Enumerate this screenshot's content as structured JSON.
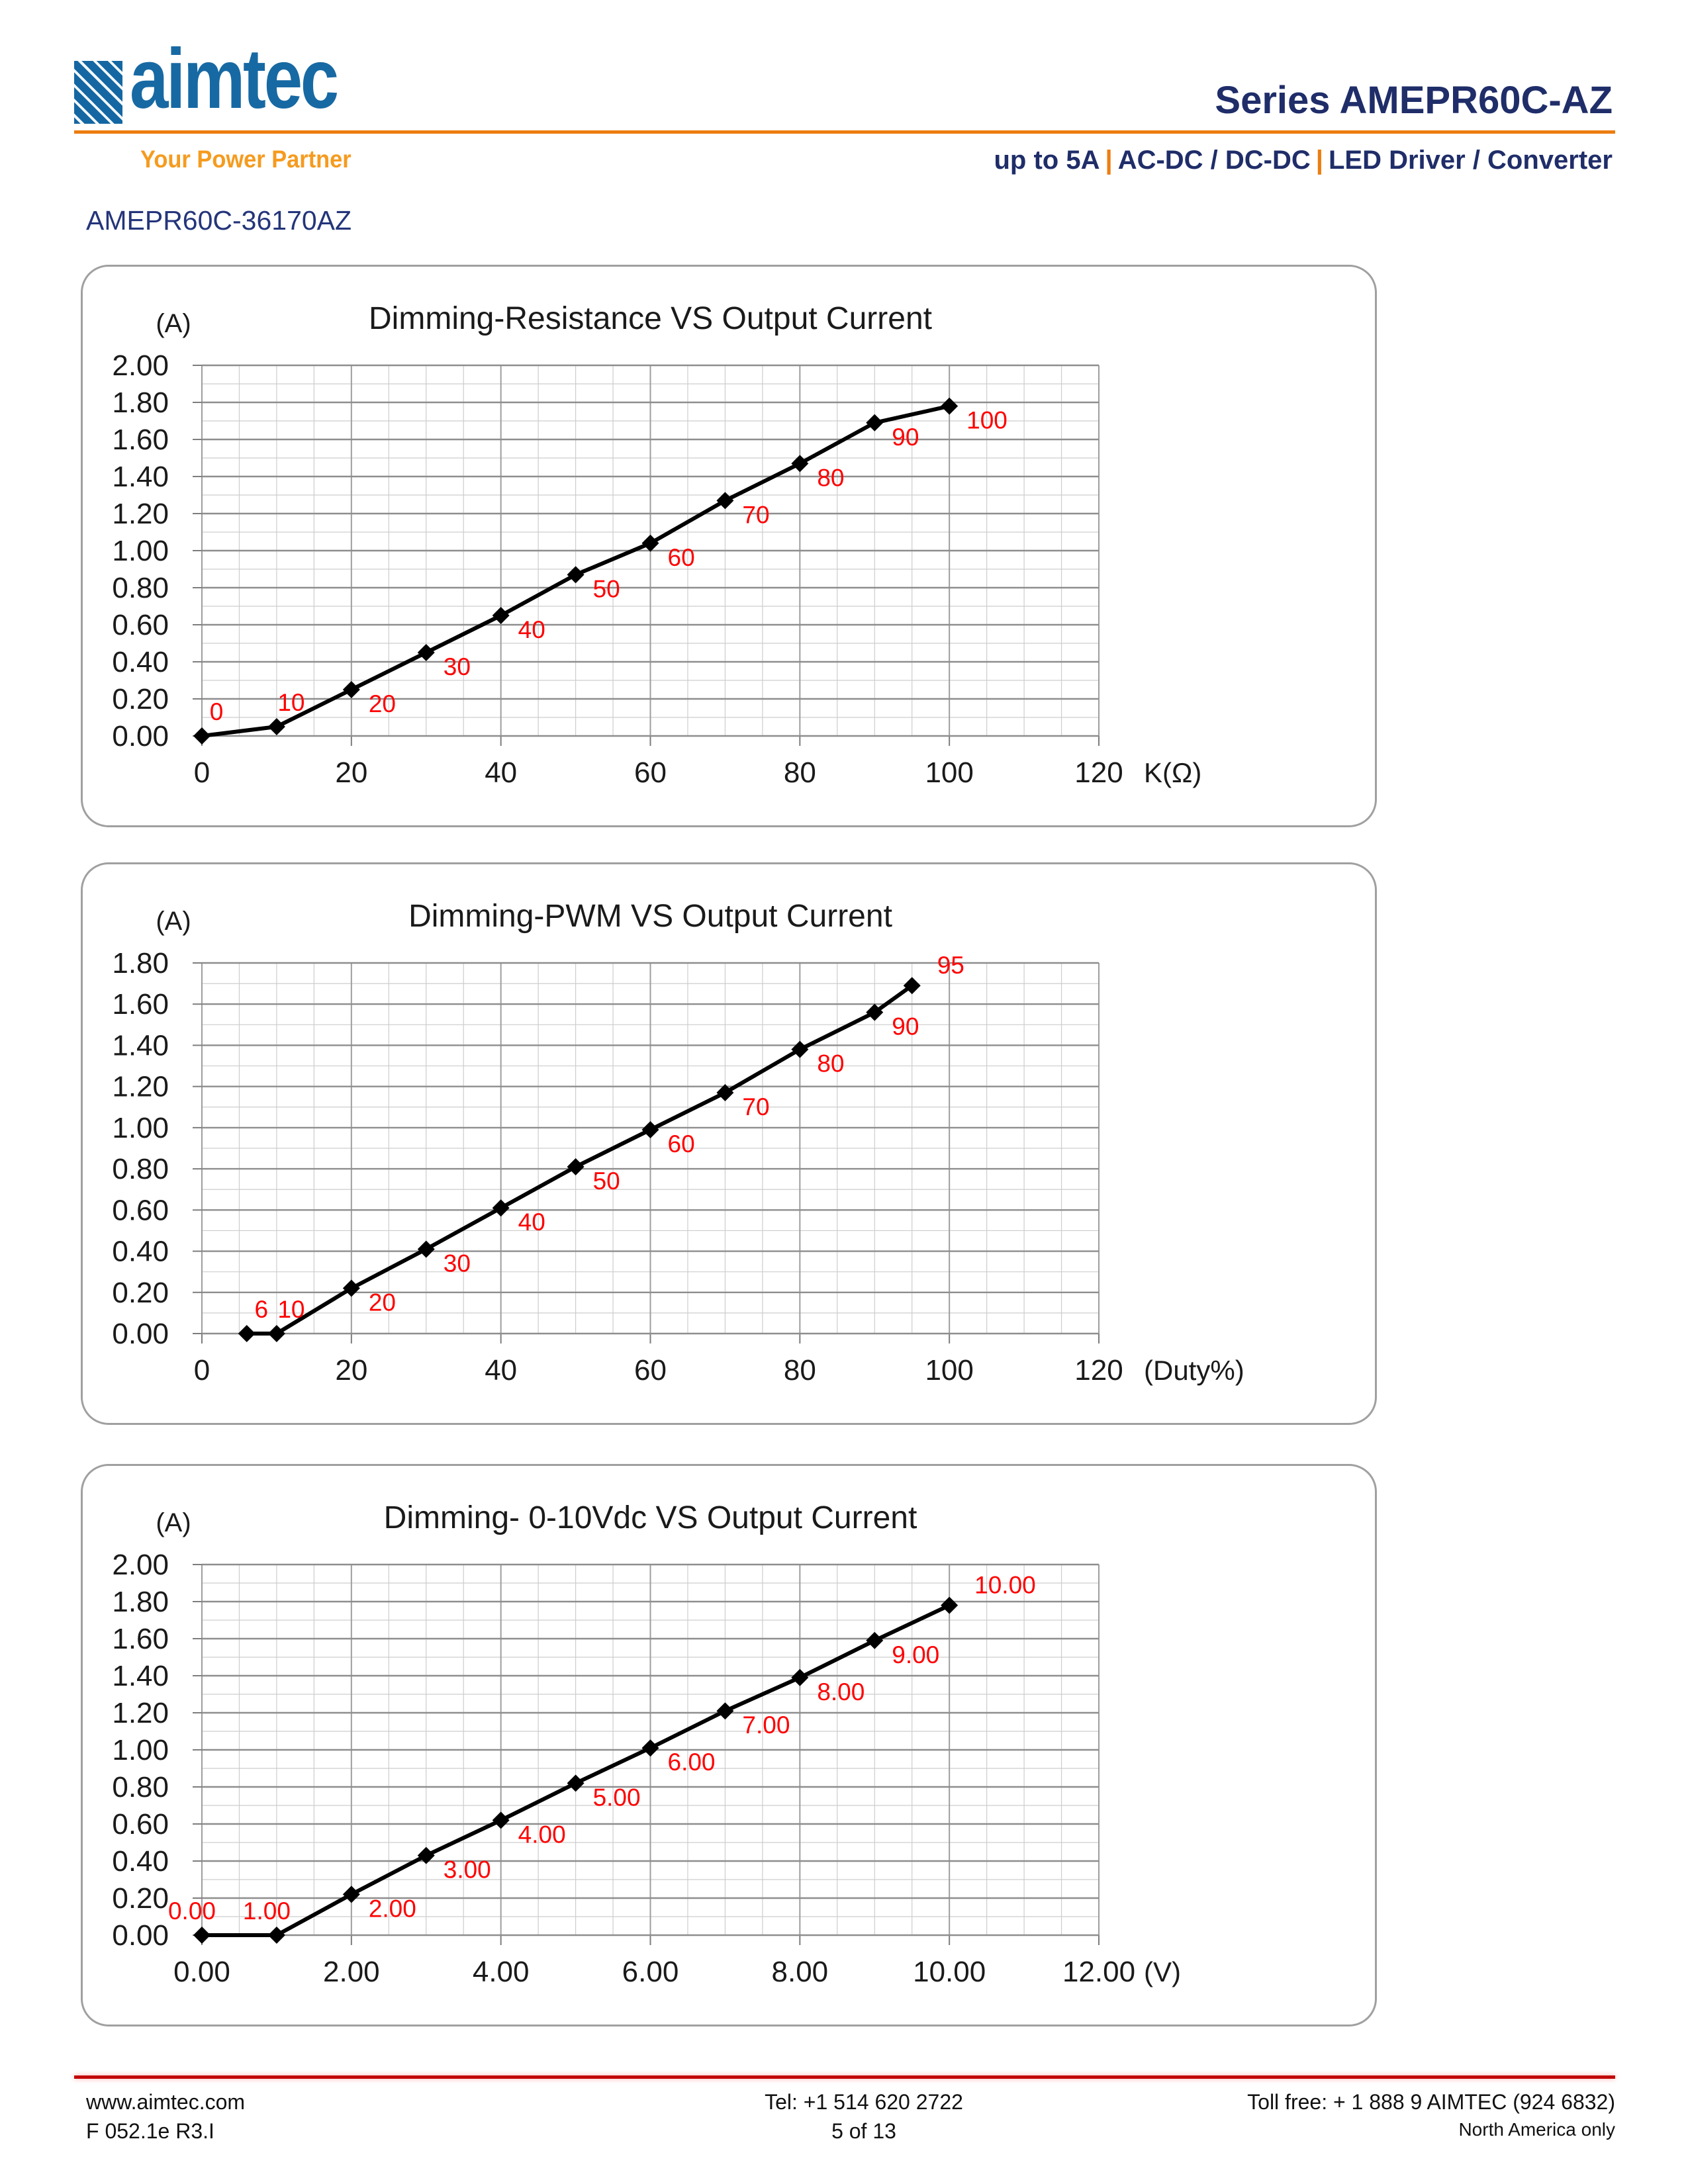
{
  "header": {
    "logo": {
      "brand": "aimtec",
      "tagline": "Your Power Partner",
      "brand_color": "#1769A3",
      "tagline_color": "#F59B1F"
    },
    "series_title": "Series AMEPR60C-AZ",
    "subtitle_parts": [
      "up to 5A",
      "AC-DC / DC-DC",
      "LED Driver / Converter"
    ],
    "separator": "|",
    "accent_color": "#EC7D10",
    "navy_color": "#1F2D69"
  },
  "part_number": "AMEPR60C-36170AZ",
  "chart_data": [
    {
      "type": "line",
      "title": "Dimming-Resistance VS Output Current",
      "y_axis_unit": "(A)",
      "x_axis_unit": "K(Ω)",
      "x": [
        0,
        10,
        20,
        30,
        40,
        50,
        60,
        70,
        80,
        90,
        100
      ],
      "y": [
        0.0,
        0.05,
        0.25,
        0.45,
        0.65,
        0.87,
        1.04,
        1.27,
        1.47,
        1.69,
        1.78
      ],
      "point_labels": [
        "0",
        "10",
        "20",
        "30",
        "40",
        "50",
        "60",
        "70",
        "80",
        "90",
        "100"
      ],
      "label_pos": [
        "a",
        "a",
        "r",
        "r",
        "r",
        "r",
        "r",
        "r",
        "r",
        "r",
        "r"
      ],
      "xlim": [
        0,
        120
      ],
      "ylim": [
        0,
        2.0
      ],
      "xtick_values": [
        0,
        20,
        40,
        60,
        80,
        100,
        120
      ],
      "xtick_labels": [
        "0",
        "20",
        "40",
        "60",
        "80",
        "100",
        "120"
      ],
      "ytick_step": 0.2,
      "x_minor_step": 5,
      "y_minor_step": 0.1,
      "grid": true,
      "legend": "none",
      "series_color": "#000000",
      "marker": "diamond",
      "point_label_color": "#FF0000"
    },
    {
      "type": "line",
      "title": "Dimming-PWM VS Output Current",
      "y_axis_unit": "(A)",
      "x_axis_unit": "(Duty%)",
      "x": [
        6,
        10,
        20,
        30,
        40,
        50,
        60,
        70,
        80,
        90,
        95
      ],
      "y": [
        0.0,
        0.0,
        0.22,
        0.41,
        0.61,
        0.81,
        0.99,
        1.17,
        1.38,
        1.56,
        1.69
      ],
      "point_labels": [
        "6",
        "10",
        "20",
        "30",
        "40",
        "50",
        "60",
        "70",
        "80",
        "90",
        "95"
      ],
      "label_pos": [
        "a",
        "a",
        "r",
        "r",
        "r",
        "r",
        "r",
        "r",
        "r",
        "r",
        "ar"
      ],
      "xlim": [
        0,
        120
      ],
      "ylim": [
        0,
        1.8
      ],
      "xtick_values": [
        0,
        20,
        40,
        60,
        80,
        100,
        120
      ],
      "xtick_labels": [
        "0",
        "20",
        "40",
        "60",
        "80",
        "100",
        "120"
      ],
      "ytick_step": 0.2,
      "x_minor_step": 5,
      "y_minor_step": 0.1,
      "grid": true,
      "legend": "none",
      "series_color": "#000000",
      "marker": "diamond",
      "point_label_color": "#FF0000"
    },
    {
      "type": "line",
      "title": "Dimming- 0-10Vdc VS Output Current",
      "y_axis_unit": "(A)",
      "x_axis_unit": "(V)",
      "x": [
        0,
        1,
        2,
        3,
        4,
        5,
        6,
        7,
        8,
        9,
        10
      ],
      "y": [
        0.0,
        0.0,
        0.22,
        0.43,
        0.62,
        0.82,
        1.01,
        1.21,
        1.39,
        1.59,
        1.78
      ],
      "point_labels": [
        "0.00",
        "1.00",
        "2.00",
        "3.00",
        "4.00",
        "5.00",
        "6.00",
        "7.00",
        "8.00",
        "9.00",
        "10.00"
      ],
      "label_pos": [
        "at",
        "at",
        "r",
        "r",
        "r",
        "r",
        "r",
        "r",
        "r",
        "r",
        "ar"
      ],
      "xlim": [
        0,
        12
      ],
      "ylim": [
        0,
        2.0
      ],
      "xtick_values": [
        0,
        2,
        4,
        6,
        8,
        10,
        12
      ],
      "xtick_labels": [
        "0.00",
        "2.00",
        "4.00",
        "6.00",
        "8.00",
        "10.00",
        "12.00"
      ],
      "ytick_step": 0.2,
      "x_minor_step": 0.5,
      "y_minor_step": 0.1,
      "grid": true,
      "legend": "none",
      "series_color": "#000000",
      "marker": "diamond",
      "point_label_color": "#FF0000"
    }
  ],
  "footer": {
    "rule_color": "#C00000",
    "website": "www.aimtec.com",
    "form_ref": "F 052.1e R3.I",
    "tel": "Tel: +1 514 620 2722",
    "page": "5 of 13",
    "toll_free": "Toll free: + 1 888 9 AIMTEC (924 6832)",
    "region": "North America only"
  }
}
